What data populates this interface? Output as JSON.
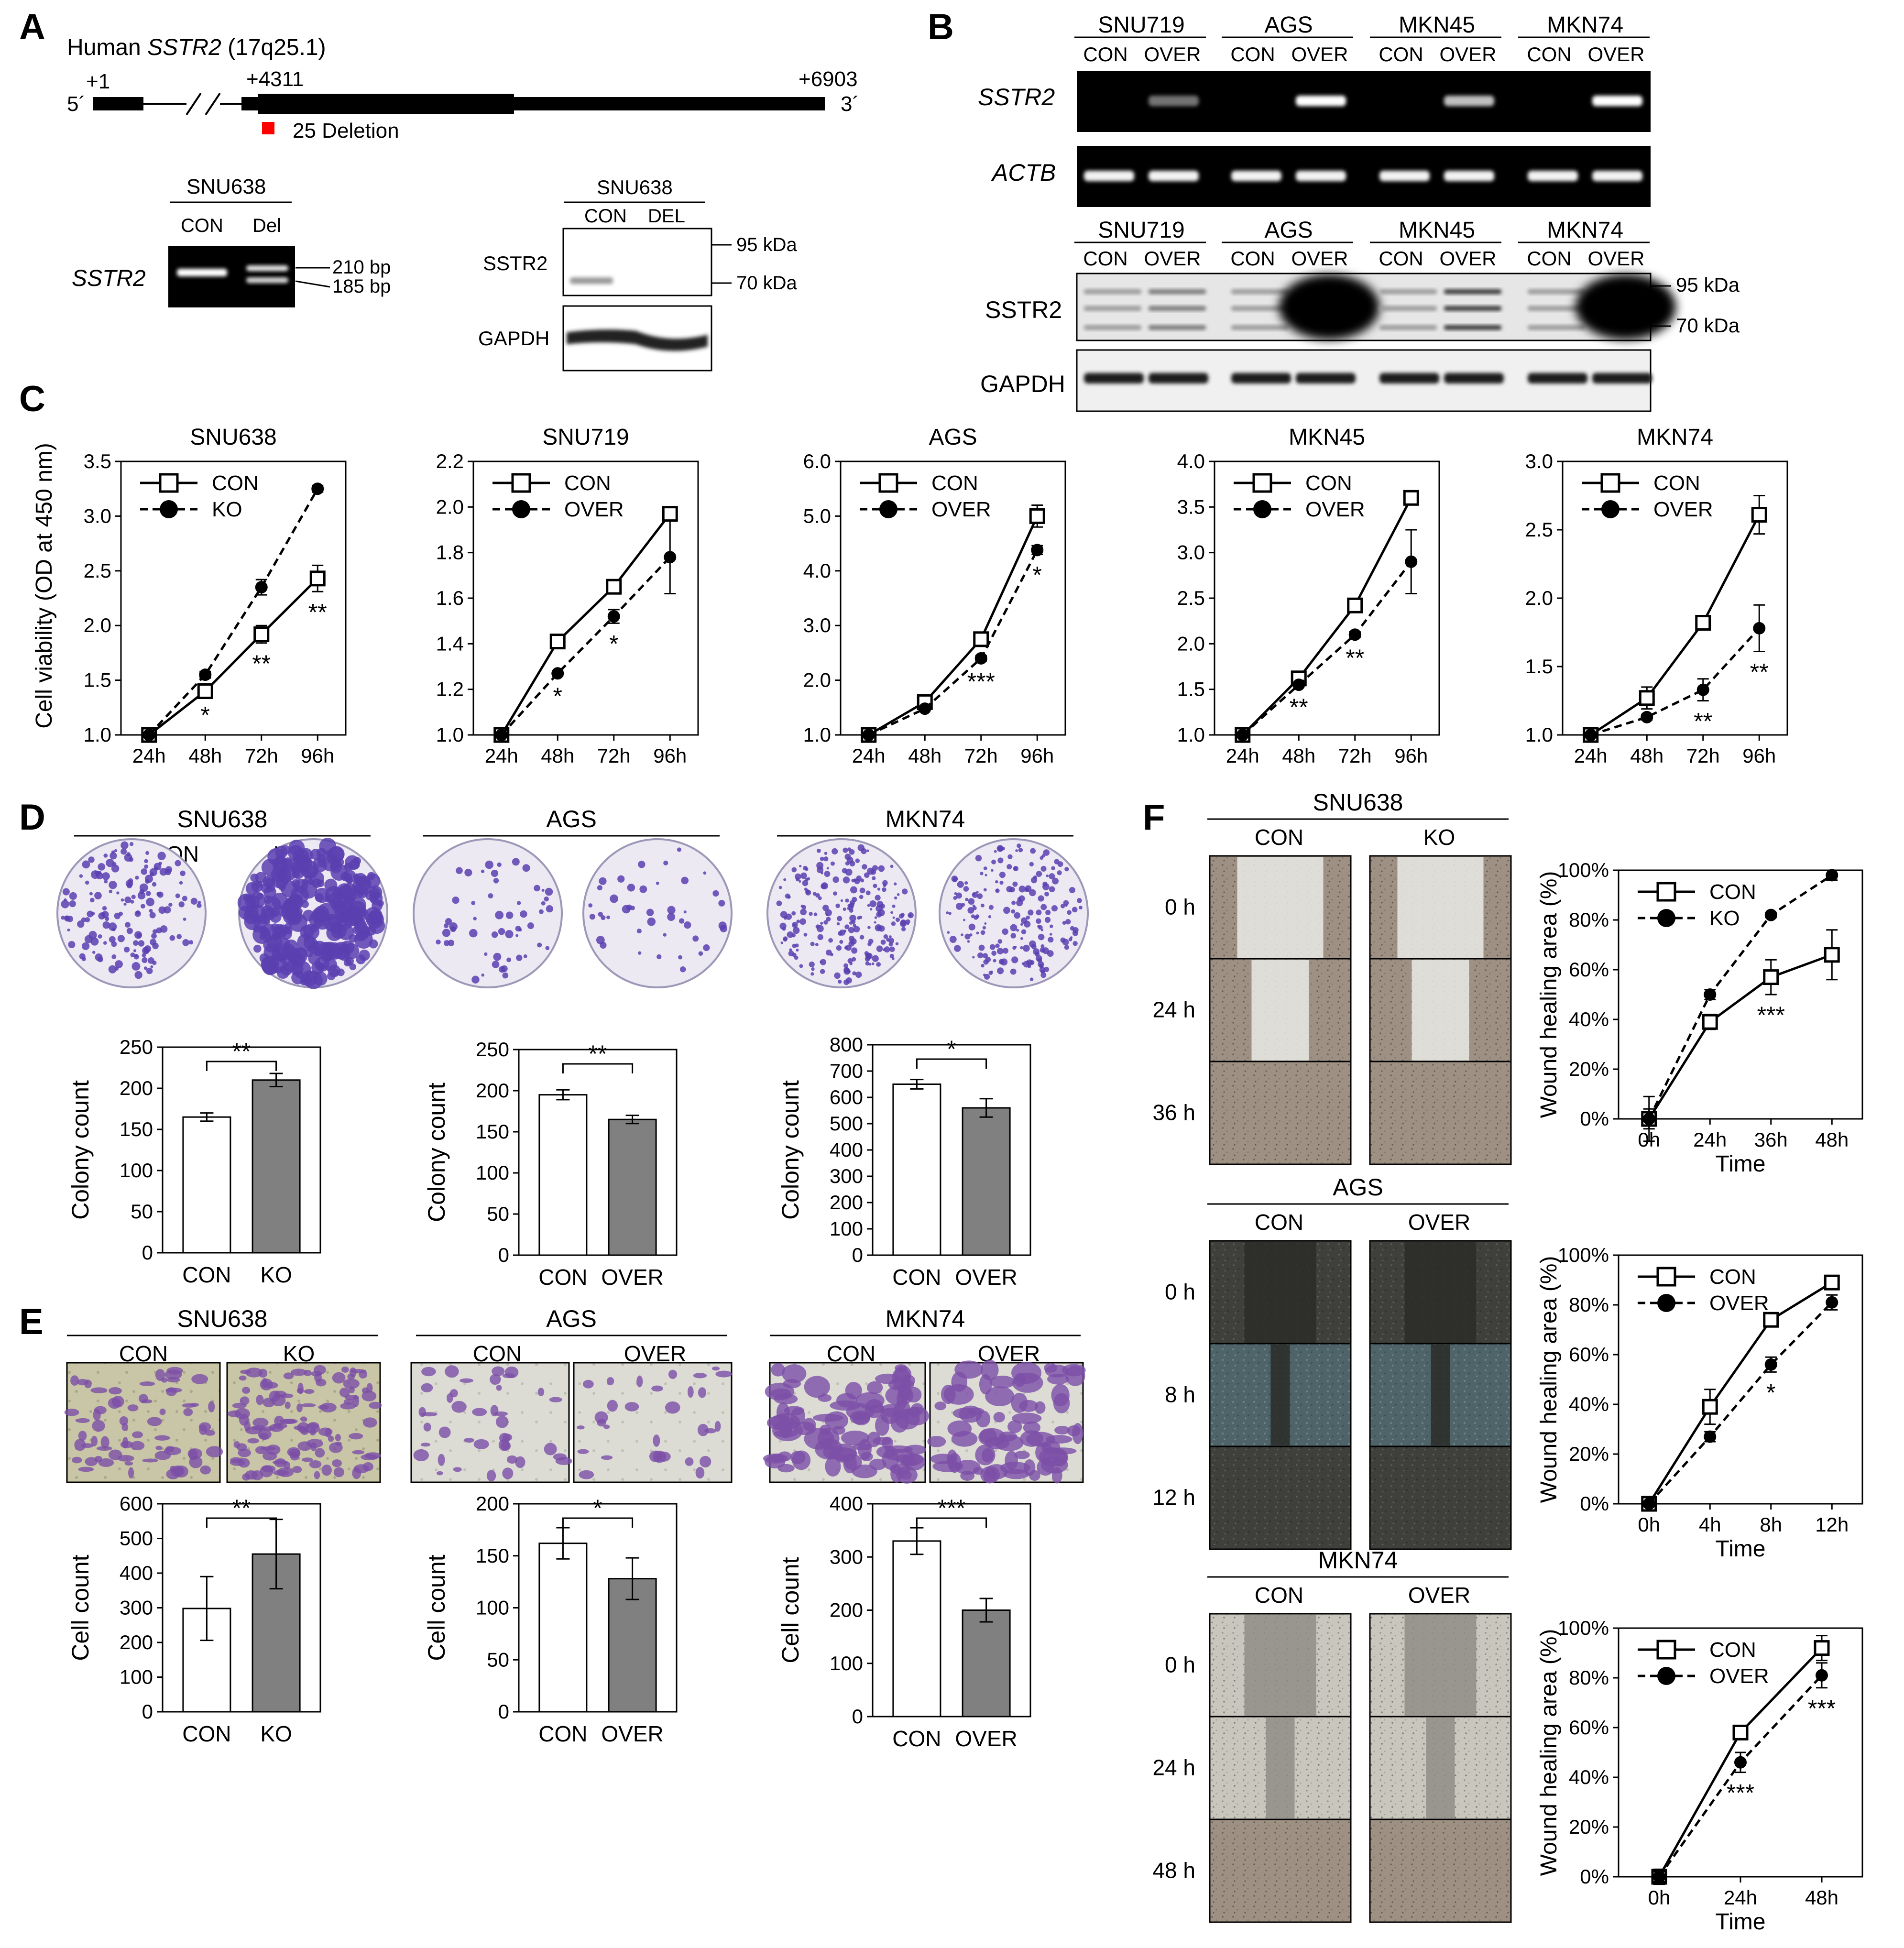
{
  "panel_letters": {
    "A": "A",
    "B": "B",
    "C": "C",
    "D": "D",
    "E": "E",
    "F": "F"
  },
  "panelA": {
    "gene_title_prefix": "Human ",
    "gene_name": "SSTR2",
    "gene_locus": " (17q25.1)",
    "pos_start": "+1",
    "pos_mid": "+4311",
    "pos_end": "+6903",
    "five_prime": "5´",
    "three_prime": "3´",
    "deletion_label": "25 Deletion",
    "pcr": {
      "cell_line": "SNU638",
      "lanes": [
        "CON",
        "Del"
      ],
      "row_label": "SSTR2",
      "markers": [
        "210 bp",
        "185 bp"
      ]
    },
    "wb": {
      "cell_line": "SNU638",
      "lanes": [
        "CON",
        "DEL"
      ],
      "rows": [
        "SSTR2",
        "GAPDH"
      ],
      "markers": [
        "95 kDa",
        "70 kDa"
      ]
    }
  },
  "panelB": {
    "cell_lines": [
      "SNU719",
      "AGS",
      "MKN45",
      "MKN74"
    ],
    "lanes": [
      "CON",
      "OVER"
    ],
    "pcr_rows": [
      "SSTR2",
      "ACTB"
    ],
    "wb_rows": [
      "SSTR2",
      "GAPDH"
    ],
    "markers": [
      "95 kDa",
      "70 kDa"
    ]
  },
  "panelC": {
    "ylabel": "Cell viability (OD at 450 nm)",
    "xticks": [
      "24h",
      "48h",
      "72h",
      "96h"
    ]
  },
  "panelD": {
    "conditions": [
      "CON",
      "KO",
      "CON",
      "OVER",
      "CON",
      "OVER"
    ],
    "cell_lines": [
      "SNU638",
      "AGS",
      "MKN74"
    ]
  },
  "panelE": {
    "conditions": [
      "CON",
      "KO",
      "CON",
      "OVER",
      "CON",
      "OVER"
    ],
    "cell_lines": [
      "SNU638",
      "AGS",
      "MKN74"
    ]
  },
  "panelF": {
    "blocks": [
      {
        "cell_line": "SNU638",
        "conditions": [
          "CON",
          "KO"
        ],
        "times": [
          "0 h",
          "24 h",
          "36 h"
        ]
      },
      {
        "cell_line": "AGS",
        "conditions": [
          "CON",
          "OVER"
        ],
        "times": [
          "0 h",
          "8 h",
          "12 h"
        ]
      },
      {
        "cell_line": "MKN74",
        "conditions": [
          "CON",
          "OVER"
        ],
        "times": [
          "0 h",
          "24 h",
          "48 h"
        ]
      }
    ]
  },
  "colors": {
    "con_bar": "#ffffff",
    "treat_bar": "#808080",
    "gel_bg": "#000000",
    "crystal_violet": "#5b3fb0"
  },
  "chart_data": [
    {
      "id": "C1",
      "type": "line",
      "title": "SNU638",
      "ylabel": "Cell viability (OD at 450 nm)",
      "x": [
        "24h",
        "48h",
        "72h",
        "96h"
      ],
      "ylim": [
        1.0,
        3.5
      ],
      "yticks": [
        "1.0",
        "1.5",
        "2.0",
        "2.5",
        "3.0",
        "3.5"
      ],
      "series": [
        {
          "name": "CON",
          "values": [
            1.0,
            1.4,
            1.92,
            2.43
          ],
          "err": [
            0,
            0.03,
            0.08,
            0.12
          ],
          "marker": "open-square",
          "line": "solid"
        },
        {
          "name": "KO",
          "values": [
            1.0,
            1.55,
            2.35,
            3.25
          ],
          "err": [
            0,
            0.03,
            0.07,
            0.03
          ],
          "marker": "filled-circle",
          "line": "dashed"
        }
      ],
      "annotations": [
        {
          "x": "48h",
          "text": "*"
        },
        {
          "x": "72h",
          "text": "**"
        },
        {
          "x": "96h",
          "text": "**"
        }
      ]
    },
    {
      "id": "C2",
      "type": "line",
      "title": "SNU719",
      "x": [
        "24h",
        "48h",
        "72h",
        "96h"
      ],
      "ylim": [
        1.0,
        2.2
      ],
      "yticks": [
        "1.0",
        "1.2",
        "1.4",
        "1.6",
        "1.8",
        "2.0",
        "2.2"
      ],
      "series": [
        {
          "name": "CON",
          "values": [
            1.0,
            1.41,
            1.65,
            1.97
          ],
          "err": [
            0,
            0.03,
            0.03,
            0.02
          ],
          "marker": "open-square",
          "line": "solid"
        },
        {
          "name": "OVER",
          "values": [
            1.0,
            1.27,
            1.52,
            1.78
          ],
          "err": [
            0,
            0.01,
            0.03,
            0.16
          ],
          "marker": "filled-circle",
          "line": "dashed"
        }
      ],
      "annotations": [
        {
          "x": "48h",
          "text": "*"
        },
        {
          "x": "72h",
          "text": "*"
        }
      ]
    },
    {
      "id": "C3",
      "type": "line",
      "title": "AGS",
      "x": [
        "24h",
        "48h",
        "72h",
        "96h"
      ],
      "ylim": [
        1.0,
        6.0
      ],
      "yticks": [
        "1.0",
        "2.0",
        "3.0",
        "4.0",
        "5.0",
        "6.0"
      ],
      "series": [
        {
          "name": "CON",
          "values": [
            1.0,
            1.6,
            2.75,
            5.0
          ],
          "err": [
            0,
            0.03,
            0.05,
            0.2
          ],
          "marker": "open-square",
          "line": "solid"
        },
        {
          "name": "OVER",
          "values": [
            1.0,
            1.48,
            2.4,
            4.38
          ],
          "err": [
            0,
            0.03,
            0.05,
            0.08
          ],
          "marker": "filled-circle",
          "line": "dashed"
        }
      ],
      "annotations": [
        {
          "x": "72h",
          "text": "***"
        },
        {
          "x": "96h",
          "text": "*"
        }
      ]
    },
    {
      "id": "C4",
      "type": "line",
      "title": "MKN45",
      "x": [
        "24h",
        "48h",
        "72h",
        "96h"
      ],
      "ylim": [
        1.0,
        4.0
      ],
      "yticks": [
        "1.0",
        "1.5",
        "2.0",
        "2.5",
        "3.0",
        "3.5",
        "4.0"
      ],
      "series": [
        {
          "name": "CON",
          "values": [
            1.0,
            1.62,
            2.42,
            3.6
          ],
          "err": [
            0,
            0.04,
            0.03,
            0.03
          ],
          "marker": "open-square",
          "line": "solid"
        },
        {
          "name": "OVER",
          "values": [
            1.0,
            1.55,
            2.1,
            2.9
          ],
          "err": [
            0,
            0.02,
            0.03,
            0.35
          ],
          "marker": "filled-circle",
          "line": "dashed"
        }
      ],
      "annotations": [
        {
          "x": "48h",
          "text": "**"
        },
        {
          "x": "72h",
          "text": "**"
        }
      ]
    },
    {
      "id": "C5",
      "type": "line",
      "title": "MKN74",
      "x": [
        "24h",
        "48h",
        "72h",
        "96h"
      ],
      "ylim": [
        1.0,
        3.0
      ],
      "yticks": [
        "1.0",
        "1.5",
        "2.0",
        "2.5",
        "3.0"
      ],
      "series": [
        {
          "name": "CON",
          "values": [
            1.0,
            1.27,
            1.82,
            2.61
          ],
          "err": [
            0,
            0.08,
            0.02,
            0.14
          ],
          "marker": "open-square",
          "line": "solid"
        },
        {
          "name": "OVER",
          "values": [
            1.0,
            1.13,
            1.33,
            1.78
          ],
          "err": [
            0,
            0.02,
            0.08,
            0.17
          ],
          "marker": "filled-circle",
          "line": "dashed"
        }
      ],
      "annotations": [
        {
          "x": "72h",
          "text": "**"
        },
        {
          "x": "96h",
          "text": "**"
        }
      ]
    },
    {
      "id": "D1",
      "type": "bar",
      "ylabel": "Colony count",
      "categories": [
        "CON",
        "KO"
      ],
      "values": [
        165,
        210
      ],
      "err": [
        5,
        8
      ],
      "ylim": [
        0,
        250
      ],
      "yticks": [
        "0",
        "50",
        "100",
        "150",
        "200",
        "250"
      ],
      "sig": "**"
    },
    {
      "id": "D2",
      "type": "bar",
      "ylabel": "Colony count",
      "categories": [
        "CON",
        "OVER"
      ],
      "values": [
        195,
        165
      ],
      "err": [
        6,
        5
      ],
      "ylim": [
        0,
        250
      ],
      "yticks": [
        "0",
        "50",
        "100",
        "150",
        "200",
        "250"
      ],
      "sig": "**"
    },
    {
      "id": "D3",
      "type": "bar",
      "ylabel": "Colony count",
      "categories": [
        "CON",
        "OVER"
      ],
      "values": [
        650,
        560
      ],
      "err": [
        18,
        35
      ],
      "ylim": [
        0,
        800
      ],
      "yticks": [
        "0",
        "100",
        "200",
        "300",
        "400",
        "500",
        "600",
        "700",
        "800"
      ],
      "sig": "*"
    },
    {
      "id": "E1",
      "type": "bar",
      "ylabel": "Cell count",
      "categories": [
        "CON",
        "KO"
      ],
      "values": [
        298,
        455
      ],
      "err": [
        92,
        100
      ],
      "ylim": [
        0,
        600
      ],
      "yticks": [
        "0",
        "100",
        "200",
        "300",
        "400",
        "500",
        "600"
      ],
      "sig": "**"
    },
    {
      "id": "E2",
      "type": "bar",
      "ylabel": "Cell count",
      "categories": [
        "CON",
        "OVER"
      ],
      "values": [
        162,
        128
      ],
      "err": [
        15,
        20
      ],
      "ylim": [
        0,
        200
      ],
      "yticks": [
        "0",
        "50",
        "100",
        "150",
        "200"
      ],
      "sig": "*"
    },
    {
      "id": "E3",
      "type": "bar",
      "ylabel": "Cell count",
      "categories": [
        "CON",
        "OVER"
      ],
      "values": [
        330,
        200
      ],
      "err": [
        25,
        22
      ],
      "ylim": [
        0,
        400
      ],
      "yticks": [
        "0",
        "100",
        "200",
        "300",
        "400"
      ],
      "sig": "***"
    },
    {
      "id": "F1",
      "type": "line",
      "ylabel": "Wound healing area (%)",
      "xlabel": "Time",
      "x": [
        "0h",
        "24h",
        "36h",
        "48h"
      ],
      "ylim": [
        0,
        100
      ],
      "yticks": [
        "0%",
        "20%",
        "40%",
        "60%",
        "80%",
        "100%"
      ],
      "series": [
        {
          "name": "CON",
          "values": [
            0,
            39,
            57,
            66
          ],
          "err": [
            9,
            3,
            7,
            10
          ],
          "marker": "open-square",
          "line": "solid"
        },
        {
          "name": "KO",
          "values": [
            0,
            50,
            82,
            98
          ],
          "err": [
            4,
            2,
            1,
            2
          ],
          "marker": "filled-circle",
          "line": "dashed"
        }
      ],
      "annotations": [
        {
          "x": "36h",
          "text": "***"
        }
      ]
    },
    {
      "id": "F2",
      "type": "line",
      "ylabel": "Wound healing area (%)",
      "xlabel": "Time",
      "x": [
        "0h",
        "4h",
        "8h",
        "12h"
      ],
      "ylim": [
        0,
        100
      ],
      "yticks": [
        "0%",
        "20%",
        "40%",
        "60%",
        "80%",
        "100%"
      ],
      "series": [
        {
          "name": "CON",
          "values": [
            0,
            39,
            74,
            89
          ],
          "err": [
            2,
            7,
            2,
            2
          ],
          "marker": "open-square",
          "line": "solid"
        },
        {
          "name": "OVER",
          "values": [
            0,
            27,
            56,
            81
          ],
          "err": [
            1,
            2,
            3,
            3
          ],
          "marker": "filled-circle",
          "line": "dashed"
        }
      ],
      "annotations": [
        {
          "x": "8h",
          "text": "*"
        }
      ]
    },
    {
      "id": "F3",
      "type": "line",
      "ylabel": "Wound healing area (%)",
      "xlabel": "Time",
      "x": [
        "0h",
        "24h",
        "48h"
      ],
      "ylim": [
        0,
        100
      ],
      "yticks": [
        "0%",
        "20%",
        "40%",
        "60%",
        "80%",
        "100%"
      ],
      "series": [
        {
          "name": "CON",
          "values": [
            0,
            58,
            92
          ],
          "err": [
            3,
            2,
            5
          ],
          "marker": "open-square",
          "line": "solid"
        },
        {
          "name": "OVER",
          "values": [
            0,
            46,
            81
          ],
          "err": [
            2,
            4,
            5
          ],
          "marker": "filled-circle",
          "line": "dashed"
        }
      ],
      "annotations": [
        {
          "x": "24h",
          "text": "***"
        },
        {
          "x": "48h",
          "text": "***"
        }
      ]
    }
  ]
}
